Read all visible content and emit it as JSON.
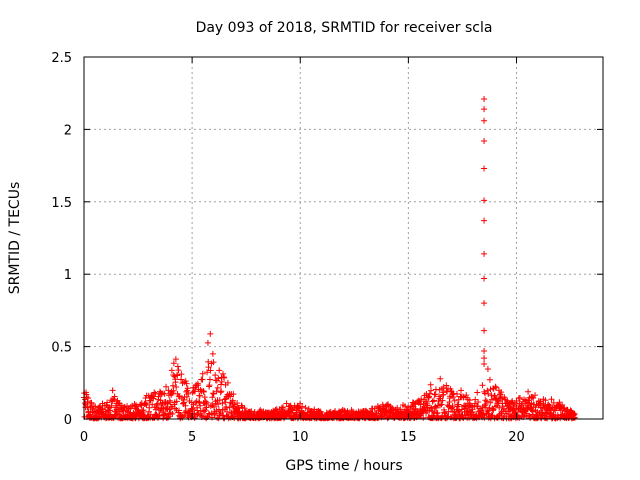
{
  "chart_data": {
    "type": "scatter",
    "title": "Day 093 of 2018, SRMTID for receiver scla",
    "xlabel": "GPS time / hours",
    "ylabel": "SRMTID / TECUs",
    "xlim": [
      0,
      24
    ],
    "ylim": [
      0,
      2.5
    ],
    "x_ticks": [
      0,
      5,
      10,
      15,
      20
    ],
    "y_ticks": [
      0,
      0.5,
      1,
      1.5,
      2,
      2.5
    ],
    "grid": true,
    "marker": "+",
    "color": "#ff0000",
    "spike": {
      "x": 18.5,
      "y": [
        2.21,
        2.14,
        2.06,
        1.92,
        1.73,
        1.51,
        1.37,
        1.14,
        0.97,
        0.8,
        0.61,
        0.47,
        0.42,
        0.38
      ]
    },
    "envelope": [
      [
        0.0,
        0.22
      ],
      [
        0.3,
        0.12
      ],
      [
        0.6,
        0.08
      ],
      [
        1.0,
        0.12
      ],
      [
        1.4,
        0.18
      ],
      [
        1.8,
        0.08
      ],
      [
        2.2,
        0.1
      ],
      [
        2.6,
        0.12
      ],
      [
        3.0,
        0.18
      ],
      [
        3.4,
        0.22
      ],
      [
        3.8,
        0.25
      ],
      [
        4.2,
        0.42
      ],
      [
        4.6,
        0.3
      ],
      [
        5.0,
        0.22
      ],
      [
        5.4,
        0.28
      ],
      [
        5.9,
        0.52
      ],
      [
        6.2,
        0.42
      ],
      [
        6.6,
        0.28
      ],
      [
        7.0,
        0.16
      ],
      [
        7.5,
        0.06
      ],
      [
        8.0,
        0.05
      ],
      [
        8.5,
        0.06
      ],
      [
        9.0,
        0.07
      ],
      [
        9.5,
        0.1
      ],
      [
        10.0,
        0.09
      ],
      [
        10.5,
        0.07
      ],
      [
        11.0,
        0.05
      ],
      [
        11.5,
        0.05
      ],
      [
        12.0,
        0.06
      ],
      [
        12.5,
        0.05
      ],
      [
        13.0,
        0.06
      ],
      [
        13.5,
        0.08
      ],
      [
        14.0,
        0.1
      ],
      [
        14.5,
        0.09
      ],
      [
        15.0,
        0.1
      ],
      [
        15.5,
        0.14
      ],
      [
        16.0,
        0.2
      ],
      [
        16.4,
        0.25
      ],
      [
        16.8,
        0.22
      ],
      [
        17.2,
        0.18
      ],
      [
        17.6,
        0.16
      ],
      [
        18.0,
        0.12
      ],
      [
        18.4,
        0.2
      ],
      [
        18.7,
        0.3
      ],
      [
        19.0,
        0.25
      ],
      [
        19.5,
        0.15
      ],
      [
        20.0,
        0.14
      ],
      [
        20.5,
        0.2
      ],
      [
        21.0,
        0.16
      ],
      [
        21.5,
        0.12
      ],
      [
        22.0,
        0.1
      ],
      [
        22.5,
        0.06
      ],
      [
        22.7,
        0.03
      ]
    ],
    "data_range_hours": [
      0,
      22.7
    ],
    "n_points": 1700
  }
}
